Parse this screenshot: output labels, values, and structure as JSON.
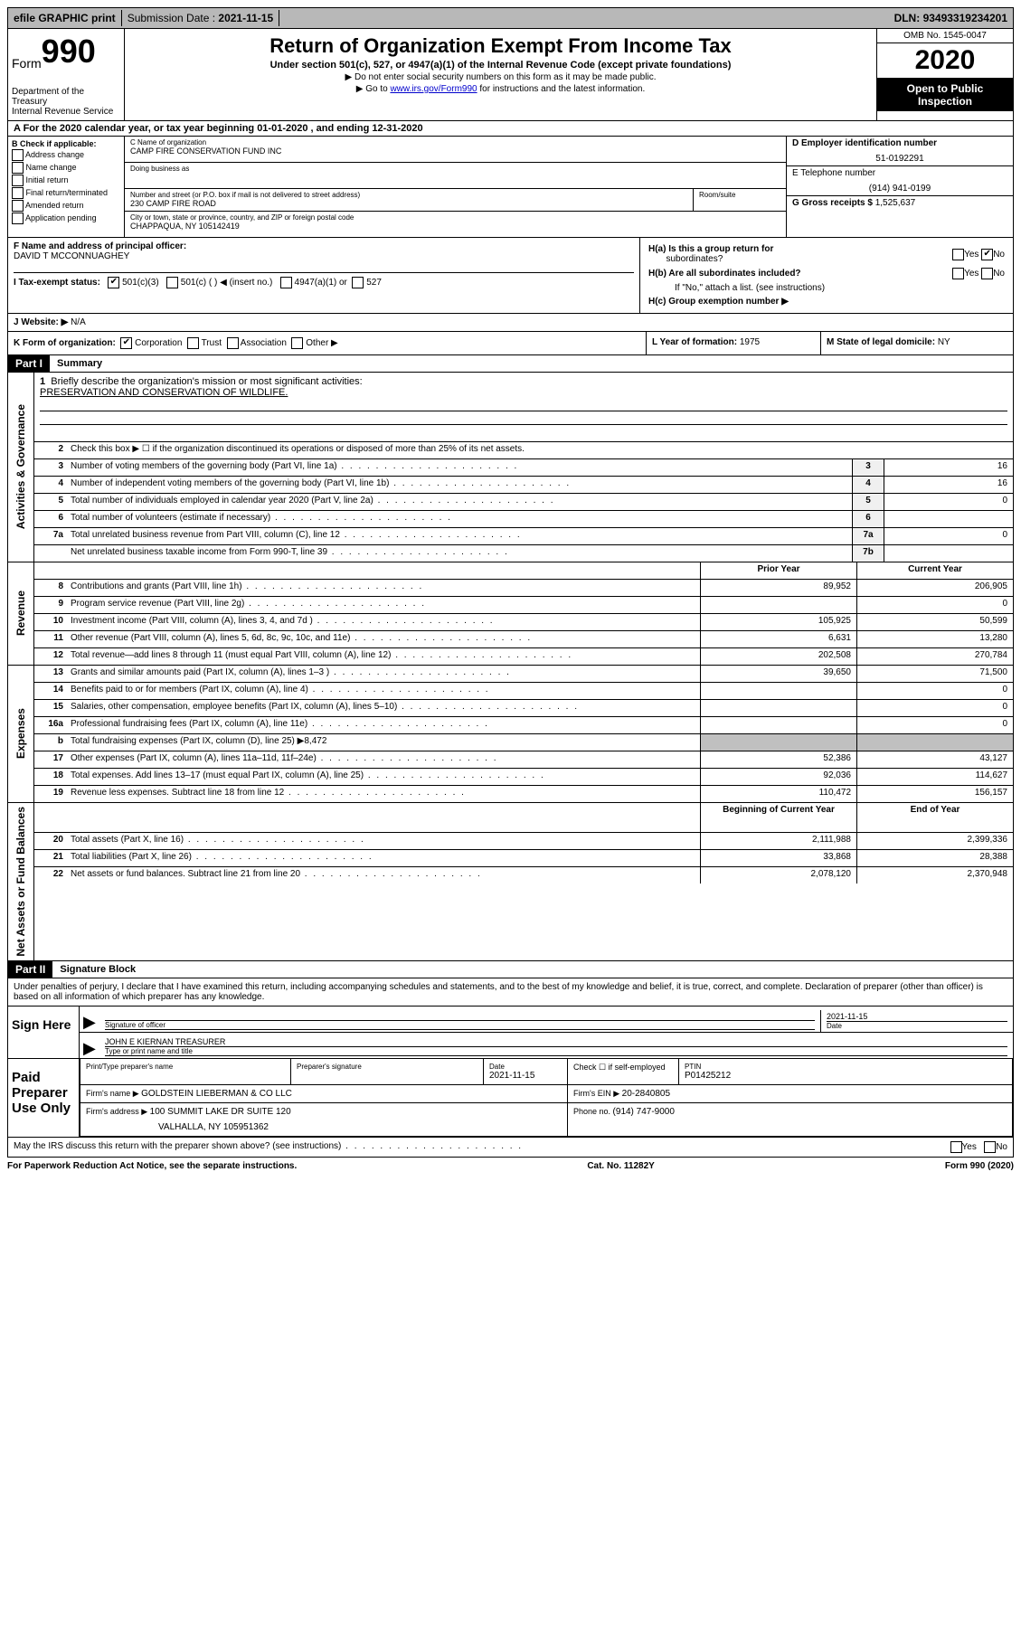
{
  "topbar": {
    "efile": "efile GRAPHIC print",
    "submission_label": "Submission Date : ",
    "submission_date": "2021-11-15",
    "dln_label": "DLN: ",
    "dln": "93493319234201"
  },
  "header": {
    "form_prefix": "Form",
    "form_number": "990",
    "dept": "Department of the Treasury",
    "irs": "Internal Revenue Service",
    "title": "Return of Organization Exempt From Income Tax",
    "sub": "Under section 501(c), 527, or 4947(a)(1) of the Internal Revenue Code (except private foundations)",
    "arrow1": "▶ Do not enter social security numbers on this form as it may be made public.",
    "arrow2_pre": "▶ Go to ",
    "arrow2_link": "www.irs.gov/Form990",
    "arrow2_post": " for instructions and the latest information.",
    "omb": "OMB No. 1545-0047",
    "year": "2020",
    "inspection1": "Open to Public",
    "inspection2": "Inspection"
  },
  "row_a": "A For the 2020 calendar year, or tax year beginning 01-01-2020     , and ending 12-31-2020",
  "col_b": {
    "header": "B Check if applicable:",
    "items": [
      "Address change",
      "Name change",
      "Initial return",
      "Final return/terminated",
      "Amended return",
      "Application pending"
    ]
  },
  "col_c": {
    "name_label": "C Name of organization",
    "name": "CAMP FIRE CONSERVATION FUND INC",
    "dba_label": "Doing business as",
    "street_label": "Number and street (or P.O. box if mail is not delivered to street address)",
    "street": "230 CAMP FIRE ROAD",
    "room_label": "Room/suite",
    "city_label": "City or town, state or province, country, and ZIP or foreign postal code",
    "city": "CHAPPAQUA, NY  105142419"
  },
  "col_d": {
    "ein_label": "D Employer identification number",
    "ein": "51-0192291",
    "phone_label": "E Telephone number",
    "phone": "(914) 941-0199",
    "gross_label": "G Gross receipts $ ",
    "gross": "1,525,637"
  },
  "col_f": {
    "label": "F Name and address of principal officer:",
    "name": "DAVID T MCCONNUAGHEY"
  },
  "col_h": {
    "ha": "H(a)  Is this a group return for",
    "ha2": "subordinates?",
    "hb": "H(b)  Are all subordinates included?",
    "hb_note": "If \"No,\" attach a list. (see instructions)",
    "hc": "H(c)  Group exemption number ▶",
    "yes": "Yes",
    "no": "No"
  },
  "tax_exempt": {
    "label": "I    Tax-exempt status:",
    "c3": "501(c)(3)",
    "c": "501(c) (   ) ◀ (insert no.)",
    "a1": "4947(a)(1) or",
    "s527": "527"
  },
  "website": {
    "label": "J    Website: ▶  ",
    "value": "N/A"
  },
  "row_k": {
    "k_label": "K Form of organization:",
    "corp": "Corporation",
    "trust": "Trust",
    "assoc": "Association",
    "other": "Other ▶",
    "l_label": "L Year of formation: ",
    "l_val": "1975",
    "m_label": "M State of legal domicile: ",
    "m_val": "NY"
  },
  "part1": {
    "header": "Part I",
    "title": "Summary"
  },
  "summary": {
    "line1_label": "Briefly describe the organization's mission or most significant activities:",
    "line1_val": "PRESERVATION AND CONSERVATION OF WILDLIFE.",
    "line2": "Check this box ▶ ☐  if the organization discontinued its operations or disposed of more than 25% of its net assets.",
    "line3": "Number of voting members of the governing body (Part VI, line 1a)",
    "line3_val": "16",
    "line4": "Number of independent voting members of the governing body (Part VI, line 1b)",
    "line4_val": "16",
    "line5": "Total number of individuals employed in calendar year 2020 (Part V, line 2a)",
    "line5_val": "0",
    "line6": "Total number of volunteers (estimate if necessary)",
    "line6_val": "",
    "line7a": "Total unrelated business revenue from Part VIII, column (C), line 12",
    "line7a_val": "0",
    "line7b": "Net unrelated business taxable income from Form 990-T, line 39",
    "line7b_val": ""
  },
  "revenue": {
    "prior_header": "Prior Year",
    "current_header": "Current Year",
    "rows": [
      {
        "num": "8",
        "text": "Contributions and grants (Part VIII, line 1h)",
        "prior": "89,952",
        "current": "206,905"
      },
      {
        "num": "9",
        "text": "Program service revenue (Part VIII, line 2g)",
        "prior": "",
        "current": "0"
      },
      {
        "num": "10",
        "text": "Investment income (Part VIII, column (A), lines 3, 4, and 7d )",
        "prior": "105,925",
        "current": "50,599"
      },
      {
        "num": "11",
        "text": "Other revenue (Part VIII, column (A), lines 5, 6d, 8c, 9c, 10c, and 11e)",
        "prior": "6,631",
        "current": "13,280"
      },
      {
        "num": "12",
        "text": "Total revenue—add lines 8 through 11 (must equal Part VIII, column (A), line 12)",
        "prior": "202,508",
        "current": "270,784"
      }
    ]
  },
  "expenses": {
    "rows": [
      {
        "num": "13",
        "text": "Grants and similar amounts paid (Part IX, column (A), lines 1–3 )",
        "prior": "39,650",
        "current": "71,500"
      },
      {
        "num": "14",
        "text": "Benefits paid to or for members (Part IX, column (A), line 4)",
        "prior": "",
        "current": "0"
      },
      {
        "num": "15",
        "text": "Salaries, other compensation, employee benefits (Part IX, column (A), lines 5–10)",
        "prior": "",
        "current": "0"
      },
      {
        "num": "16a",
        "text": "Professional fundraising fees (Part IX, column (A), line 11e)",
        "prior": "",
        "current": "0"
      },
      {
        "num": "b",
        "text": "Total fundraising expenses (Part IX, column (D), line 25) ▶8,472",
        "prior": "SHADED",
        "current": "SHADED"
      },
      {
        "num": "17",
        "text": "Other expenses (Part IX, column (A), lines 11a–11d, 11f–24e)",
        "prior": "52,386",
        "current": "43,127"
      },
      {
        "num": "18",
        "text": "Total expenses. Add lines 13–17 (must equal Part IX, column (A), line 25)",
        "prior": "92,036",
        "current": "114,627"
      },
      {
        "num": "19",
        "text": "Revenue less expenses. Subtract line 18 from line 12",
        "prior": "110,472",
        "current": "156,157"
      }
    ]
  },
  "netassets": {
    "begin_header": "Beginning of Current Year",
    "end_header": "End of Year",
    "rows": [
      {
        "num": "20",
        "text": "Total assets (Part X, line 16)",
        "prior": "2,111,988",
        "current": "2,399,336"
      },
      {
        "num": "21",
        "text": "Total liabilities (Part X, line 26)",
        "prior": "33,868",
        "current": "28,388"
      },
      {
        "num": "22",
        "text": "Net assets or fund balances. Subtract line 21 from line 20",
        "prior": "2,078,120",
        "current": "2,370,948"
      }
    ]
  },
  "part2": {
    "header": "Part II",
    "title": "Signature Block",
    "perjury": "Under penalties of perjury, I declare that I have examined this return, including accompanying schedules and statements, and to the best of my knowledge and belief, it is true, correct, and complete. Declaration of preparer (other than officer) is based on all information of which preparer has any knowledge."
  },
  "sign": {
    "label": "Sign Here",
    "sig_officer": "Signature of officer",
    "date": "Date",
    "date_val": "2021-11-15",
    "name": "JOHN E KIERNAN  TREASURER",
    "name_label": "Type or print name and title"
  },
  "preparer": {
    "label": "Paid Preparer Use Only",
    "print_label": "Print/Type preparer's name",
    "sig_label": "Preparer's signature",
    "date_label": "Date",
    "date_val": "2021-11-15",
    "check_label": "Check ☐ if self-employed",
    "ptin_label": "PTIN",
    "ptin": "P01425212",
    "firm_name_label": "Firm's name     ▶ ",
    "firm_name": "GOLDSTEIN LIEBERMAN & CO LLC",
    "firm_ein_label": "Firm's EIN ▶ ",
    "firm_ein": "20-2840805",
    "firm_addr_label": "Firm's address ▶ ",
    "firm_addr1": "100 SUMMIT LAKE DR SUITE 120",
    "firm_addr2": "VALHALLA, NY  105951362",
    "phone_label": "Phone no. ",
    "phone": "(914) 747-9000"
  },
  "discuss": {
    "text": "May the IRS discuss this return with the preparer shown above? (see instructions)",
    "yes": "Yes",
    "no": "No"
  },
  "footer": {
    "left": "For Paperwork Reduction Act Notice, see the separate instructions.",
    "mid": "Cat. No. 11282Y",
    "right": "Form 990 (2020)"
  },
  "vlabels": {
    "activities": "Activities & Governance",
    "revenue": "Revenue",
    "expenses": "Expenses",
    "netassets": "Net Assets or Fund Balances"
  }
}
